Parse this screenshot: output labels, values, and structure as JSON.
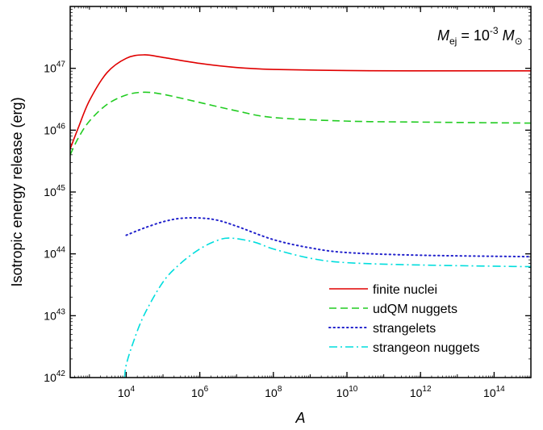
{
  "chart_data": {
    "type": "line",
    "xlabel": "A",
    "ylabel": "Isotropic energy release (erg)",
    "x_scale": "log",
    "y_scale": "log",
    "xlim": [
      300,
      1000000000000000.0
    ],
    "ylim": [
      1e+42,
      1e+48
    ],
    "x_ticks": [
      {
        "value": 10000,
        "mantissa": "10",
        "exp": "4"
      },
      {
        "value": 1000000,
        "mantissa": "10",
        "exp": "6"
      },
      {
        "value": 100000000,
        "mantissa": "10",
        "exp": "8"
      },
      {
        "value": 10000000000,
        "mantissa": "10",
        "exp": "10"
      },
      {
        "value": 1000000000000,
        "mantissa": "10",
        "exp": "12"
      },
      {
        "value": 100000000000000,
        "mantissa": "10",
        "exp": "14"
      }
    ],
    "y_ticks": [
      {
        "value": 1e+42,
        "mantissa": "10",
        "exp": "42"
      },
      {
        "value": 1e+43,
        "mantissa": "10",
        "exp": "43"
      },
      {
        "value": 1e+44,
        "mantissa": "10",
        "exp": "44"
      },
      {
        "value": 1e+45,
        "mantissa": "10",
        "exp": "45"
      },
      {
        "value": 1e+46,
        "mantissa": "10",
        "exp": "46"
      },
      {
        "value": 1e+47,
        "mantissa": "10",
        "exp": "47"
      }
    ],
    "annotation": {
      "m": "M",
      "sub": "ej",
      "eq": " = 10",
      "exp": "-3",
      "m2": "M",
      "sub2": "⊙"
    },
    "legend_position": "bottom-right",
    "series": [
      {
        "name": "finite nuclei",
        "color": "#e00000",
        "dash": "solid",
        "x": [
          300,
          500,
          1000,
          3000,
          10000,
          30000,
          100000,
          1000000,
          10000000,
          100000000,
          10000000000,
          1000000000000.0,
          1000000000000000.0
        ],
        "y": [
          5e+45,
          1.1e+46,
          3e+46,
          8.5e+46,
          1.45e+47,
          1.65e+47,
          1.5e+47,
          1.2e+47,
          1.03e+47,
          9.6e+46,
          9.2e+46,
          9.1e+46,
          9.1e+46
        ]
      },
      {
        "name": "udQM nuggets",
        "color": "#22cc22",
        "dash": "dashed",
        "x": [
          300,
          500,
          1000,
          3000,
          10000,
          30000,
          100000,
          1000000,
          10000000,
          100000000,
          10000000000,
          1000000000000.0,
          1000000000000000.0
        ],
        "y": [
          4e+45,
          7.5e+45,
          1.4e+46,
          2.6e+46,
          3.7e+46,
          4.1e+46,
          3.8e+46,
          2.8e+46,
          2.05e+46,
          1.6e+46,
          1.4e+46,
          1.35e+46,
          1.3e+46
        ]
      },
      {
        "name": "strangelets",
        "color": "#2222cc",
        "dash": "dotted",
        "x": [
          10000,
          30000,
          100000,
          300000,
          1000000,
          3000000,
          10000000,
          100000000,
          1000000000,
          10000000000,
          1000000000000.0,
          1000000000000000.0
        ],
        "y": [
          2e+44,
          2.6e+44,
          3.3e+44,
          3.75e+44,
          3.8e+44,
          3.5e+44,
          2.8e+44,
          1.7e+44,
          1.25e+44,
          1.05e+44,
          9.5e+43,
          9e+43
        ]
      },
      {
        "name": "strangeon nuggets",
        "color": "#00dddd",
        "dash": "dashdot",
        "x": [
          9000,
          10000,
          15000,
          30000,
          100000,
          300000,
          1000000,
          3000000,
          7000000,
          30000000,
          100000000,
          1000000000,
          10000000000,
          1000000000000.0,
          1000000000000000.0
        ],
        "y": [
          1e+42,
          1.6e+42,
          3.5e+42,
          1e+43,
          3.5e+43,
          7e+43,
          1.2e+44,
          1.65e+44,
          1.8e+44,
          1.55e+44,
          1.2e+44,
          8.5e+43,
          7.2e+43,
          6.6e+43,
          6.2e+43
        ]
      }
    ]
  }
}
